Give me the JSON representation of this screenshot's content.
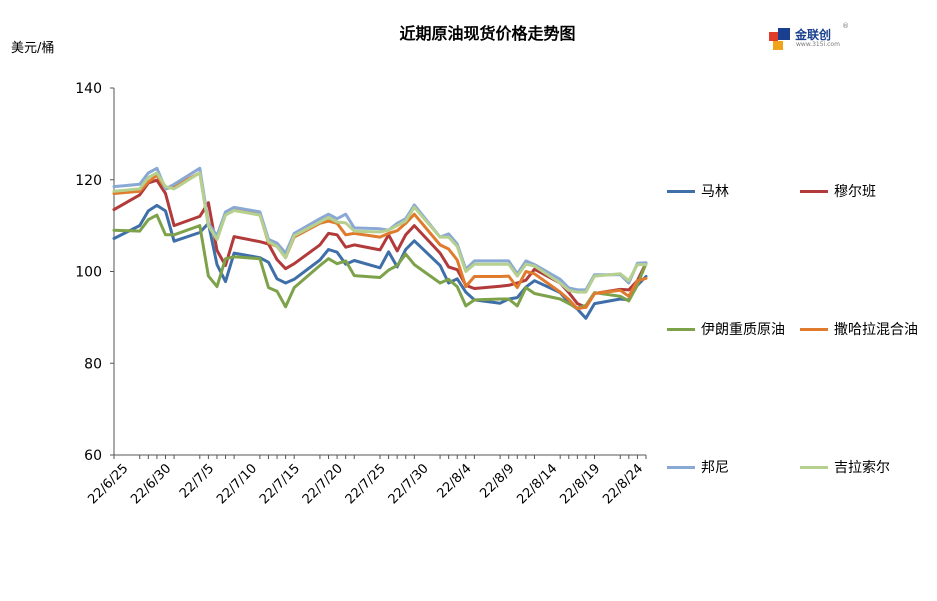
{
  "chart_data": {
    "type": "line",
    "title": "近期原油现货价格走势图",
    "ylabel": "美元/桶",
    "ylim": [
      60,
      140
    ],
    "y_ticks": [
      60,
      80,
      100,
      120,
      140
    ],
    "x_tick_labels": [
      "22/6/25",
      "22/6/30",
      "22/7/5",
      "22/7/10",
      "22/7/15",
      "22/7/20",
      "22/7/25",
      "22/7/30",
      "22/8/4",
      "22/8/9",
      "22/8/14",
      "22/8/19",
      "22/8/24"
    ],
    "x": [
      "22/6/24",
      "22/6/27",
      "22/6/28",
      "22/6/29",
      "22/6/30",
      "22/7/1",
      "22/7/4",
      "22/7/5",
      "22/7/6",
      "22/7/7",
      "22/7/8",
      "22/7/11",
      "22/7/12",
      "22/7/13",
      "22/7/14",
      "22/7/15",
      "22/7/18",
      "22/7/19",
      "22/7/20",
      "22/7/21",
      "22/7/22",
      "22/7/25",
      "22/7/26",
      "22/7/27",
      "22/7/28",
      "22/7/29",
      "22/8/1",
      "22/8/2",
      "22/8/3",
      "22/8/4",
      "22/8/5",
      "22/8/8",
      "22/8/9",
      "22/8/10",
      "22/8/11",
      "22/8/12",
      "22/8/15",
      "22/8/16",
      "22/8/17",
      "22/8/18",
      "22/8/19",
      "22/8/22",
      "22/8/23",
      "22/8/24",
      "22/8/25"
    ],
    "grid": false,
    "legend_position": "right",
    "series": [
      {
        "name": "马林",
        "color": "#3f6fa8",
        "values": [
          107.2,
          110.0,
          113.2,
          114.4,
          113.2,
          106.6,
          108.5,
          110.5,
          101.5,
          97.8,
          104.0,
          103.0,
          102.0,
          98.4,
          97.5,
          98.3,
          102.5,
          104.8,
          104.2,
          101.6,
          102.4,
          100.8,
          104.3,
          101.0,
          104.8,
          106.7,
          101.3,
          97.5,
          98.4,
          95.5,
          93.8,
          93.1,
          94.0,
          94.3,
          96.6,
          98.0,
          95.4,
          93.2,
          91.8,
          89.8,
          93.0,
          94.0,
          93.8,
          97.0,
          98.9
        ]
      },
      {
        "name": "穆尔班",
        "color": "#b23a3a",
        "values": [
          113.5,
          116.7,
          119.3,
          119.9,
          117.0,
          110.0,
          112.0,
          115.0,
          104.6,
          101.3,
          107.6,
          106.5,
          106.0,
          102.6,
          100.6,
          101.7,
          105.8,
          108.3,
          108.0,
          105.3,
          105.8,
          104.7,
          108.0,
          104.5,
          108.0,
          110.0,
          104.0,
          101.0,
          100.4,
          97.0,
          96.3,
          96.8,
          97.0,
          97.5,
          98.1,
          100.5,
          97.5,
          95.4,
          93.0,
          92.2,
          95.2,
          96.1,
          96.0,
          98.0,
          101.8
        ]
      },
      {
        "name": "伊朗重质原油",
        "color": "#7ea24a",
        "values": [
          109.0,
          108.8,
          111.3,
          112.3,
          108.0,
          108.0,
          110.0,
          99.0,
          96.7,
          102.8,
          103.2,
          102.8,
          96.5,
          95.7,
          92.3,
          96.5,
          101.3,
          102.8,
          101.7,
          102.3,
          99.1,
          98.7,
          100.3,
          101.3,
          103.8,
          101.5,
          97.5,
          98.3,
          96.7,
          92.5,
          93.8,
          94.0,
          94.0,
          92.5,
          96.5,
          95.2,
          94.0,
          93.0,
          92.0,
          92.6,
          95.4,
          94.6,
          93.6,
          97.1,
          101.7
        ]
      },
      {
        "name": "撒哈拉混合油",
        "color": "#e07b2e",
        "values": [
          117.0,
          117.5,
          119.5,
          121.0,
          118.0,
          118.5,
          121.5,
          110.0,
          107.0,
          112.5,
          113.5,
          112.5,
          106.2,
          105.5,
          103.0,
          107.5,
          110.5,
          111.0,
          110.5,
          108.0,
          108.3,
          107.5,
          108.3,
          108.9,
          110.5,
          112.5,
          105.8,
          104.9,
          102.5,
          96.7,
          98.9,
          98.9,
          99.0,
          96.5,
          100.0,
          99.5,
          95.5,
          93.9,
          91.9,
          92.2,
          95.2,
          95.9,
          94.6,
          98.0,
          98.5
        ]
      },
      {
        "name": "邦尼",
        "color": "#8aa8d4",
        "values": [
          118.5,
          119.0,
          121.5,
          122.5,
          118.0,
          119.0,
          122.5,
          110.5,
          107.8,
          113.0,
          114.0,
          113.0,
          107.0,
          106.2,
          104.0,
          108.3,
          111.5,
          112.5,
          111.5,
          112.5,
          109.5,
          109.3,
          109.0,
          110.5,
          111.5,
          114.5,
          107.5,
          108.2,
          106.0,
          100.5,
          102.3,
          102.3,
          102.3,
          99.5,
          102.3,
          101.5,
          98.3,
          96.4,
          96.0,
          96.0,
          99.3,
          99.3,
          97.5,
          101.8,
          101.9
        ]
      },
      {
        "name": "吉拉索尔",
        "color": "#b6d08f",
        "values": [
          117.5,
          118.0,
          120.5,
          121.5,
          118.5,
          118.0,
          121.5,
          110.0,
          107.0,
          112.3,
          113.3,
          112.3,
          106.5,
          105.5,
          103.0,
          107.8,
          110.8,
          111.8,
          110.8,
          110.6,
          108.8,
          108.6,
          109.0,
          110.0,
          111.0,
          114.0,
          107.5,
          107.5,
          105.5,
          100.0,
          101.6,
          101.6,
          101.6,
          99.0,
          101.6,
          101.2,
          97.5,
          95.9,
          95.5,
          95.5,
          99.0,
          99.5,
          98.0,
          101.5,
          101.5
        ]
      }
    ]
  }
}
